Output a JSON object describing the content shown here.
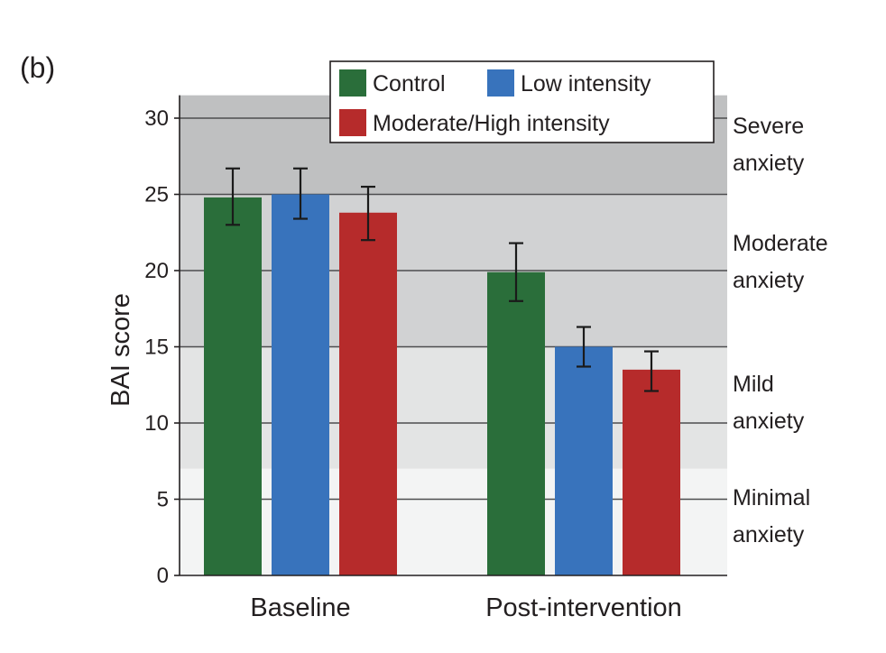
{
  "panel_label": "(b)",
  "chart_data": {
    "type": "bar",
    "categories": [
      "Baseline",
      "Post-intervention"
    ],
    "ylabel": "BAI score",
    "ylim": [
      0,
      31.5
    ],
    "yticks": [
      0,
      5,
      10,
      15,
      20,
      25,
      30
    ],
    "grid": true,
    "legend_placement": "top-center",
    "series": [
      {
        "name": "Control",
        "color": "#2a6e3a",
        "values": [
          24.8,
          19.9
        ],
        "err_low": [
          23.0,
          18.0
        ],
        "err_high": [
          26.7,
          21.8
        ]
      },
      {
        "name": "Low intensity",
        "color": "#3873bc",
        "values": [
          25.0,
          15.0
        ],
        "err_low": [
          23.4,
          13.7
        ],
        "err_high": [
          26.7,
          16.3
        ]
      },
      {
        "name": "Moderate/High intensity",
        "color": "#b62b2b",
        "values": [
          23.8,
          13.5
        ],
        "err_low": [
          22.0,
          12.1
        ],
        "err_high": [
          25.5,
          14.7
        ]
      }
    ],
    "bands": [
      {
        "lines": [
          "Minimal",
          "anxiety"
        ],
        "from": 0,
        "to": 7,
        "color": "#f3f4f4"
      },
      {
        "lines": [
          "Mild",
          "anxiety"
        ],
        "from": 7,
        "to": 15,
        "color": "#e3e4e4"
      },
      {
        "lines": [
          "Moderate",
          "anxiety"
        ],
        "from": 15,
        "to": 25,
        "color": "#d1d2d3"
      },
      {
        "lines": [
          "Severe",
          "anxiety"
        ],
        "from": 25,
        "to": 31.5,
        "color": "#bfc0c1"
      }
    ]
  }
}
